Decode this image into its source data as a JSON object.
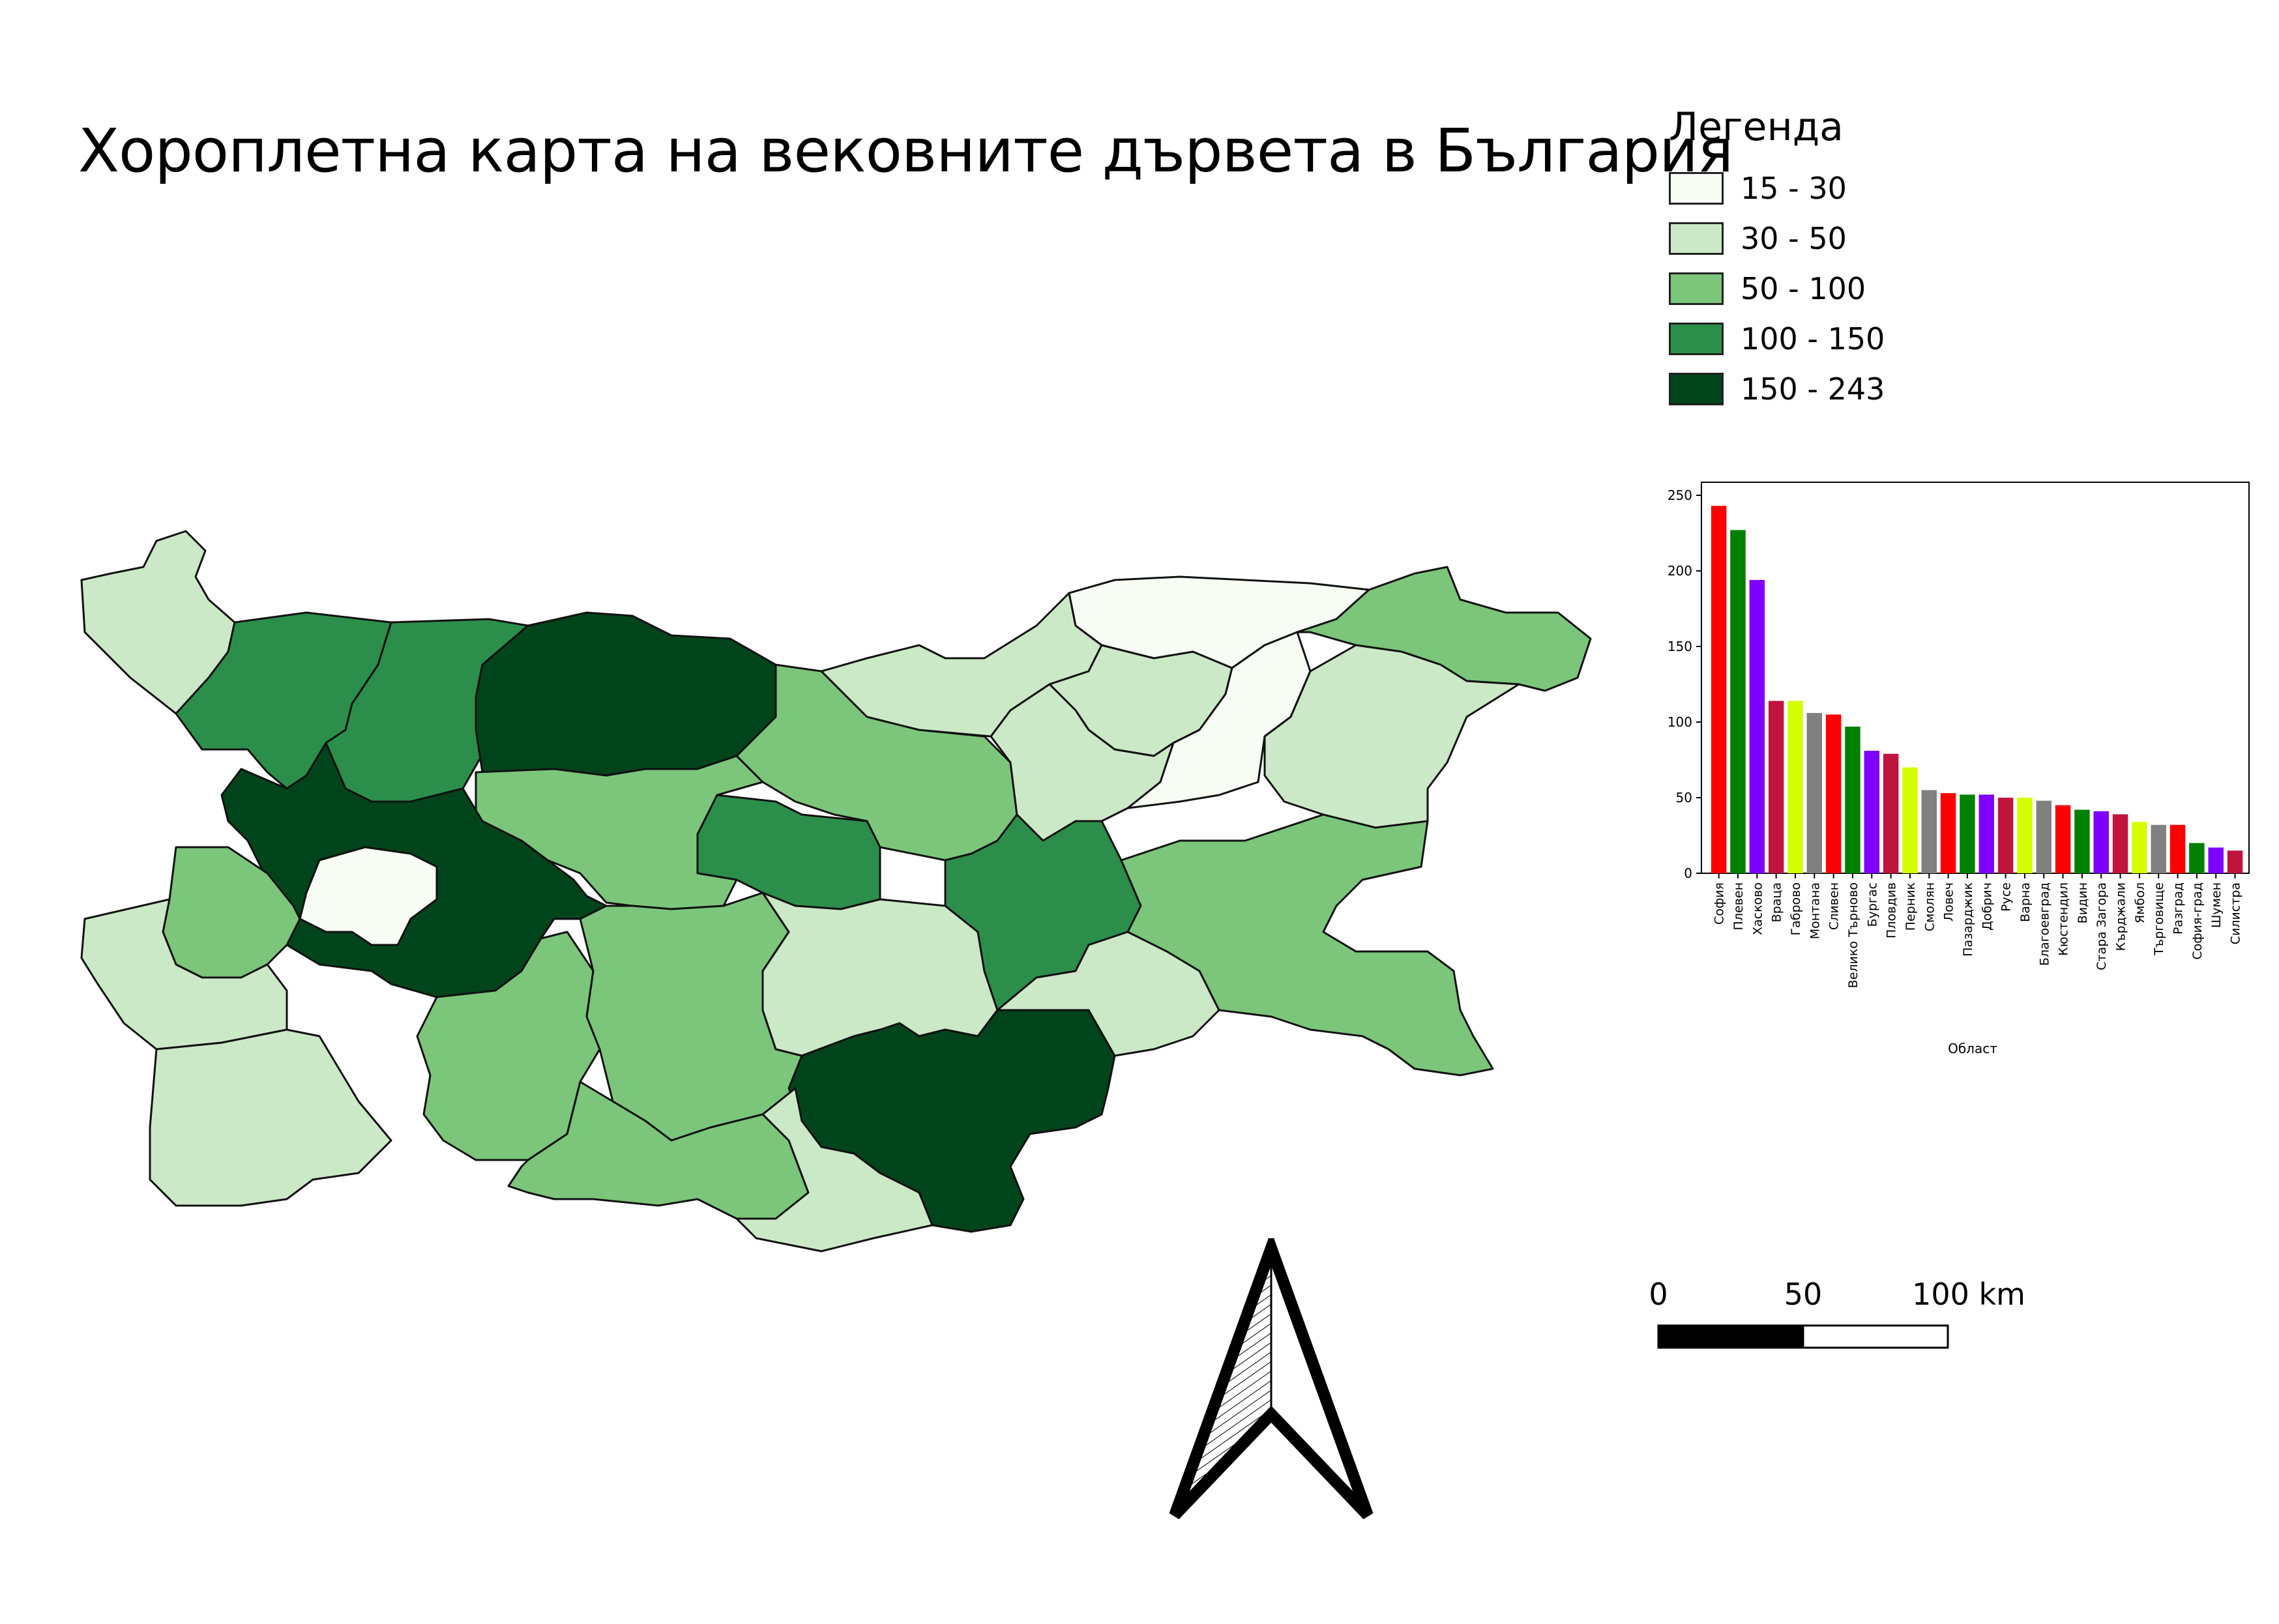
{
  "title": "Хороплетна карта на вековните дървета в България",
  "legend": {
    "title": "Легенда",
    "items": [
      {
        "label": "15 - 30",
        "color": "#f7fcf5"
      },
      {
        "label": "30 - 50",
        "color": "#cce9c7"
      },
      {
        "label": "50 - 100",
        "color": "#7bc67b"
      },
      {
        "label": "100 - 150",
        "color": "#2b8f4b"
      },
      {
        "label": "150 - 243",
        "color": "#00441b"
      }
    ]
  },
  "chart_data": {
    "type": "bar",
    "xlabel": "Област",
    "ylim": [
      0,
      250
    ],
    "yticks": [
      0,
      50,
      100,
      150,
      200,
      250
    ],
    "categories": [
      "София",
      "Плевен",
      "Хасково",
      "Враца",
      "Габрово",
      "Монтана",
      "Сливен",
      "Велико Търново",
      "Бургас",
      "Пловдив",
      "Перник",
      "Смолян",
      "Ловеч",
      "Пазарджик",
      "Добрич",
      "Русе",
      "Варна",
      "Благоевград",
      "Кюстендил",
      "Видин",
      "Стара Загора",
      "Кърджали",
      "Ямбол",
      "Търговище",
      "Разград",
      "София-град",
      "Шумен",
      "Силистра"
    ],
    "values": [
      243,
      227,
      194,
      114,
      114,
      106,
      105,
      97,
      81,
      79,
      70,
      55,
      53,
      52,
      52,
      50,
      50,
      48,
      45,
      42,
      41,
      39,
      34,
      32,
      32,
      20,
      17,
      15
    ],
    "colors": [
      "#ff0000",
      "#008000",
      "#7f00ff",
      "#c0143c",
      "#d4ff00",
      "#808080",
      "#ff0000",
      "#008000",
      "#7f00ff",
      "#c0143c",
      "#d4ff00",
      "#808080",
      "#ff0000",
      "#008000",
      "#7f00ff",
      "#c0143c",
      "#d4ff00",
      "#808080",
      "#ff0000",
      "#008000",
      "#7f00ff",
      "#c0143c",
      "#d4ff00",
      "#808080",
      "#ff0000",
      "#008000",
      "#7f00ff",
      "#c0143c"
    ]
  },
  "scale_bar": {
    "labels": [
      "0",
      "50",
      "100 km"
    ]
  }
}
